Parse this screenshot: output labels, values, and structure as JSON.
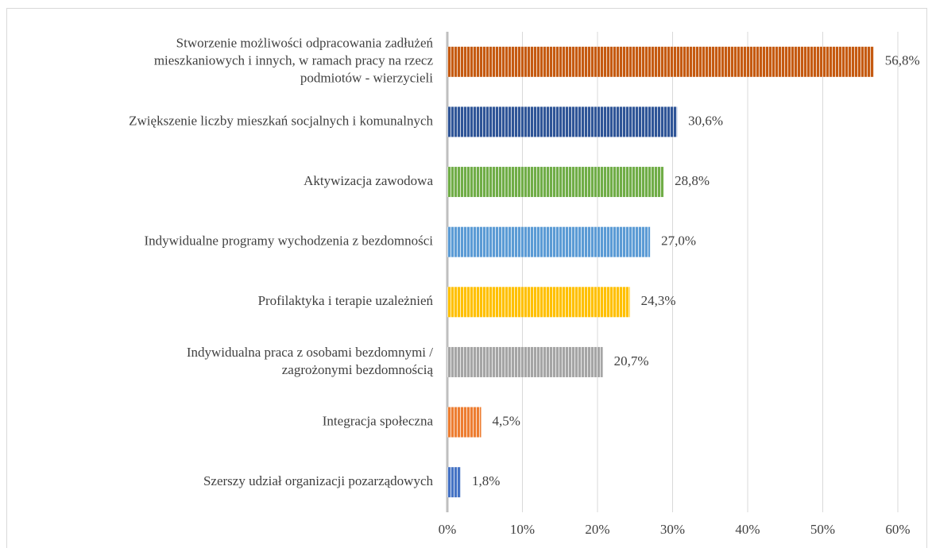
{
  "chart_data": {
    "type": "bar",
    "orientation": "horizontal",
    "categories": [
      [
        "Stworzenie możliwości odpracowania zadłużeń",
        "mieszkaniowych i innych, w ramach pracy na rzecz",
        "podmiotów - wierzycieli"
      ],
      [
        "Zwiększenie liczby mieszkań socjalnych i komunalnych"
      ],
      [
        "Aktywizacja zawodowa"
      ],
      [
        "Indywidualne programy wychodzenia z bezdomności"
      ],
      [
        "Profilaktyka i terapie uzależnień"
      ],
      [
        "Indywidualna praca z osobami bezdomnymi /",
        "zagrożonymi bezdomnością"
      ],
      [
        "Integracja społeczna"
      ],
      [
        "Szerszy udział organizacji pozarządowych"
      ]
    ],
    "values": [
      56.8,
      30.6,
      28.8,
      27.0,
      24.3,
      20.7,
      4.5,
      1.8
    ],
    "value_labels": [
      "56,8%",
      "30,6%",
      "28,8%",
      "27,0%",
      "24,3%",
      "20,7%",
      "4,5%",
      "1,8%"
    ],
    "colors": [
      "#c55a11",
      "#2f5597",
      "#70ad47",
      "#5b9bd5",
      "#ffc000",
      "#a5a5a5",
      "#ed7d31",
      "#4472c4"
    ],
    "xlim": [
      0,
      60
    ],
    "xticks": [
      {
        "value": 0,
        "label": "0%"
      },
      {
        "value": 10,
        "label": "10%"
      },
      {
        "value": 20,
        "label": "20%"
      },
      {
        "value": 30,
        "label": "30%"
      },
      {
        "value": 40,
        "label": "40%"
      },
      {
        "value": 50,
        "label": "50%"
      },
      {
        "value": 60,
        "label": "60%"
      }
    ],
    "grid": true
  }
}
